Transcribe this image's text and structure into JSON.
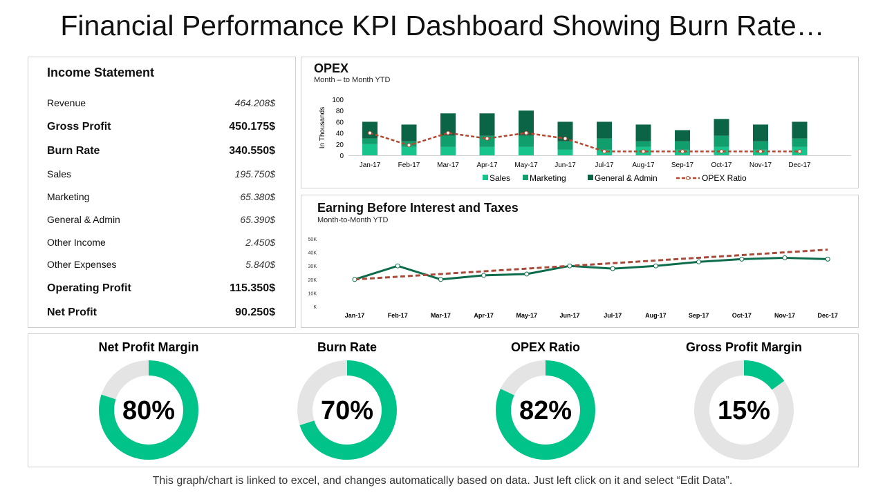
{
  "title": "Financial Performance KPI Dashboard Showing Burn Rate…",
  "income": {
    "title": "Income Statement",
    "rows": [
      {
        "label": "Revenue",
        "value": "464.208$",
        "bold": false
      },
      {
        "label": "Gross Profit",
        "value": "450.175$",
        "bold": true
      },
      {
        "label": "Burn Rate",
        "value": "340.550$",
        "bold": true
      },
      {
        "label": "Sales",
        "value": "195.750$",
        "bold": false
      },
      {
        "label": "Marketing",
        "value": "65.380$",
        "bold": false
      },
      {
        "label": "General & Admin",
        "value": "65.390$",
        "bold": false
      },
      {
        "label": "Other Income",
        "value": "2.450$",
        "bold": false
      },
      {
        "label": "Other Expenses",
        "value": "5.840$",
        "bold": false
      },
      {
        "label": "Operating Profit",
        "value": "115.350$",
        "bold": true
      },
      {
        "label": "Net Profit",
        "value": "90.250$",
        "bold": true
      }
    ]
  },
  "chart_data": [
    {
      "type": "bar",
      "stacked": true,
      "title": "OPEX",
      "subtitle": "Month – to Month YTD",
      "ylabel": "In Thousands",
      "ylim": [
        0,
        100
      ],
      "yticks": [
        "0",
        "20",
        "40",
        "60",
        "80",
        "100"
      ],
      "legend": "bottom",
      "categories": [
        "Jan-17",
        "Feb-17",
        "Mar-17",
        "Apr-17",
        "May-17",
        "Jun-17",
        "Jul-17",
        "Aug-17",
        "Sep-17",
        "Oct-17",
        "Nov-17",
        "Dec-17"
      ],
      "series": [
        {
          "name": "Sales",
          "color": "#17c48c",
          "values": [
            20,
            15,
            15,
            15,
            15,
            10,
            10,
            15,
            10,
            15,
            10,
            15
          ]
        },
        {
          "name": "Marketing",
          "color": "#0f9e6c",
          "values": [
            10,
            10,
            20,
            20,
            20,
            15,
            20,
            10,
            15,
            20,
            15,
            15
          ]
        },
        {
          "name": "General & Admin",
          "color": "#0b6446",
          "values": [
            30,
            30,
            40,
            40,
            45,
            35,
            30,
            30,
            20,
            30,
            30,
            30
          ]
        },
        {
          "name": "OPEX Ratio",
          "type": "line",
          "color": "#b5472f",
          "dashed": true,
          "values": [
            40,
            18,
            40,
            30,
            40,
            30,
            7,
            7,
            7,
            7,
            7,
            7
          ]
        }
      ]
    },
    {
      "type": "line",
      "title": "Earning Before Interest and Taxes",
      "subtitle": "Month-to-Month YTD",
      "ylim": [
        0,
        50000
      ],
      "yticks": [
        "K",
        "10K",
        "20K",
        "30K",
        "40K",
        "50K"
      ],
      "categories": [
        "Jan-17",
        "Feb-17",
        "Mar-17",
        "Apr-17",
        "May-17",
        "Jun-17",
        "Jul-17",
        "Aug-17",
        "Sep-17",
        "Oct-17",
        "Nov-17",
        "Dec-17"
      ],
      "series": [
        {
          "color": "#0b6b4a",
          "values": [
            20000,
            30000,
            20000,
            23000,
            24000,
            30000,
            28000,
            30000,
            33000,
            35000,
            36000,
            35000
          ]
        },
        {
          "type": "trendline",
          "color": "#a84a3a",
          "dashed": true,
          "values": [
            20000,
            22000,
            24000,
            26000,
            28000,
            30000,
            32000,
            34000,
            36000,
            38000,
            40000,
            42000
          ]
        }
      ]
    },
    {
      "type": "pie",
      "donuts": [
        {
          "title": "Net Profit Margin",
          "value": 80,
          "label": "80%"
        },
        {
          "title": "Burn Rate",
          "value": 70,
          "label": "70%"
        },
        {
          "title": "OPEX Ratio",
          "value": 82,
          "label": "82%"
        },
        {
          "title": "Gross Profit Margin",
          "value": 15,
          "label": "15%"
        }
      ],
      "colors": {
        "fill": "#00c389",
        "rest": "#e4e4e4"
      }
    }
  ],
  "footer": "This graph/chart is linked to excel, and changes automatically based on data. Just left click on it and select “Edit Data”."
}
